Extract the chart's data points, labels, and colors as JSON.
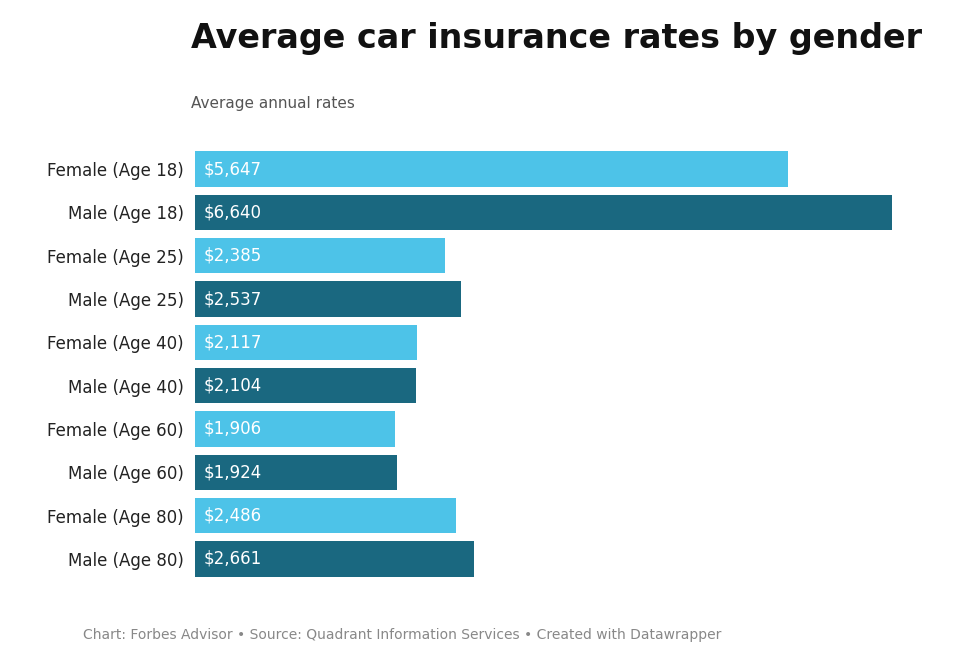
{
  "title": "Average car insurance rates by gender",
  "subtitle": "Average annual rates",
  "categories": [
    "Female (Age 18)",
    "Male (Age 18)",
    "Female (Age 25)",
    "Male (Age 25)",
    "Female (Age 40)",
    "Male (Age 40)",
    "Female (Age 60)",
    "Male (Age 60)",
    "Female (Age 80)",
    "Male (Age 80)"
  ],
  "values": [
    5647,
    6640,
    2385,
    2537,
    2117,
    2104,
    1906,
    1924,
    2486,
    2661
  ],
  "labels": [
    "$5,647",
    "$6,640",
    "$2,385",
    "$2,537",
    "$2,117",
    "$2,104",
    "$1,906",
    "$1,924",
    "$2,486",
    "$2,661"
  ],
  "colors": [
    "#4DC3E8",
    "#1A6880",
    "#4DC3E8",
    "#1A6880",
    "#4DC3E8",
    "#1A6880",
    "#4DC3E8",
    "#1A6880",
    "#4DC3E8",
    "#1A6880"
  ],
  "footer": "Chart: Forbes Advisor • Source: Quadrant Information Services • Created with Datawrapper",
  "background_color": "#ffffff",
  "title_fontsize": 24,
  "subtitle_fontsize": 11,
  "label_fontsize": 12,
  "category_fontsize": 12,
  "footer_fontsize": 10,
  "xlim": [
    0,
    7200
  ]
}
